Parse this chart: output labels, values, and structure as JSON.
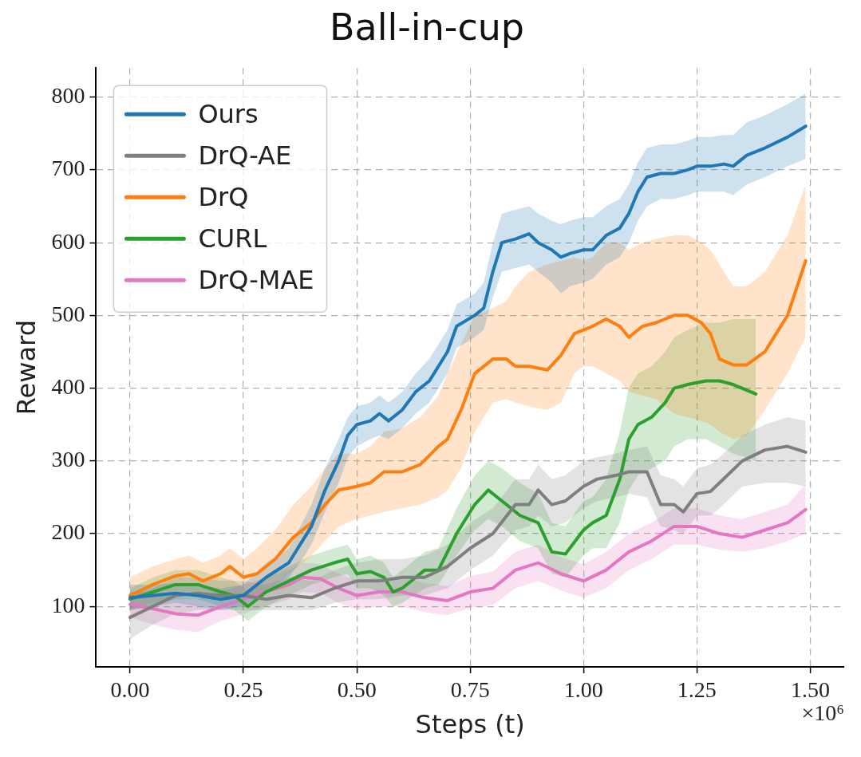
{
  "chart_data": {
    "type": "line",
    "title": "Ball-in-cup",
    "xlabel": "Steps (t)",
    "ylabel": "Reward",
    "annotations": [
      "×10⁶"
    ],
    "xlim": [
      -0.075,
      1.575
    ],
    "ylim": [
      17,
      840
    ],
    "xticks": [
      {
        "value": 0,
        "label": "0.00"
      },
      {
        "value": 0.25,
        "label": "0.25"
      },
      {
        "value": 0.5,
        "label": "0.50"
      },
      {
        "value": 0.75,
        "label": "0.75"
      },
      {
        "value": 1,
        "label": "1.00"
      },
      {
        "value": 1.25,
        "label": "1.25"
      },
      {
        "value": 1.5,
        "label": "1.50"
      }
    ],
    "yticks": [
      100,
      200,
      300,
      400,
      500,
      600,
      700,
      800
    ],
    "grid": true,
    "legend": "top left",
    "line_style": "solid",
    "marker": "none",
    "series": [
      {
        "name": "Ours",
        "color": "#1f77b4",
        "x": [
          0,
          0.05,
          0.1,
          0.15,
          0.2,
          0.25,
          0.3,
          0.35,
          0.38,
          0.4,
          0.43,
          0.46,
          0.48,
          0.5,
          0.53,
          0.55,
          0.57,
          0.6,
          0.63,
          0.66,
          0.7,
          0.72,
          0.76,
          0.78,
          0.8,
          0.82,
          0.85,
          0.88,
          0.9,
          0.93,
          0.95,
          0.97,
          1.0,
          1.02,
          1.05,
          1.08,
          1.1,
          1.12,
          1.14,
          1.17,
          1.2,
          1.23,
          1.25,
          1.28,
          1.31,
          1.33,
          1.36,
          1.4,
          1.45,
          1.49
        ],
        "values": [
          112,
          115,
          118,
          115,
          110,
          115,
          140,
          160,
          190,
          210,
          260,
          300,
          335,
          350,
          355,
          365,
          355,
          370,
          395,
          410,
          450,
          485,
          500,
          510,
          560,
          600,
          605,
          612,
          600,
          590,
          580,
          585,
          590,
          590,
          610,
          620,
          640,
          670,
          690,
          695,
          695,
          700,
          705,
          705,
          708,
          705,
          720,
          730,
          745,
          760
        ],
        "lower": [
          95,
          100,
          105,
          100,
          95,
          100,
          120,
          140,
          165,
          185,
          230,
          270,
          305,
          320,
          330,
          335,
          330,
          345,
          365,
          380,
          420,
          455,
          470,
          480,
          525,
          560,
          565,
          570,
          560,
          545,
          530,
          540,
          545,
          550,
          570,
          580,
          600,
          630,
          650,
          660,
          660,
          665,
          670,
          670,
          670,
          665,
          680,
          690,
          705,
          715
        ],
        "upper": [
          130,
          130,
          132,
          130,
          125,
          130,
          160,
          180,
          215,
          240,
          290,
          330,
          360,
          375,
          380,
          390,
          380,
          395,
          420,
          440,
          480,
          515,
          530,
          545,
          600,
          640,
          645,
          650,
          640,
          630,
          625,
          630,
          635,
          635,
          650,
          660,
          680,
          710,
          730,
          735,
          735,
          740,
          745,
          745,
          748,
          748,
          765,
          775,
          790,
          805
        ]
      },
      {
        "name": "DrQ-AE",
        "color": "#7f7f7f",
        "x": [
          0,
          0.05,
          0.1,
          0.15,
          0.2,
          0.25,
          0.3,
          0.35,
          0.4,
          0.45,
          0.5,
          0.55,
          0.6,
          0.65,
          0.7,
          0.75,
          0.8,
          0.85,
          0.88,
          0.9,
          0.93,
          0.96,
          1.0,
          1.03,
          1.07,
          1.1,
          1.14,
          1.17,
          1.2,
          1.22,
          1.25,
          1.28,
          1.3,
          1.35,
          1.4,
          1.45,
          1.49
        ],
        "values": [
          85,
          100,
          115,
          118,
          115,
          115,
          110,
          115,
          112,
          125,
          135,
          135,
          140,
          140,
          155,
          180,
          200,
          240,
          240,
          260,
          240,
          245,
          265,
          275,
          280,
          285,
          285,
          240,
          240,
          230,
          255,
          258,
          270,
          300,
          315,
          320,
          312
        ],
        "lower": [
          55,
          75,
          90,
          95,
          95,
          95,
          95,
          95,
          95,
          105,
          110,
          110,
          115,
          115,
          125,
          150,
          170,
          205,
          210,
          225,
          210,
          215,
          235,
          245,
          250,
          255,
          250,
          210,
          205,
          200,
          225,
          225,
          235,
          265,
          270,
          270,
          265
        ],
        "upper": [
          115,
          125,
          140,
          140,
          135,
          135,
          130,
          140,
          135,
          150,
          160,
          165,
          165,
          170,
          185,
          215,
          235,
          275,
          275,
          295,
          275,
          280,
          300,
          305,
          310,
          315,
          320,
          280,
          275,
          265,
          290,
          295,
          305,
          335,
          350,
          360,
          355
        ]
      },
      {
        "name": "DrQ",
        "color": "#ff7f0e",
        "x": [
          0,
          0.05,
          0.1,
          0.13,
          0.16,
          0.2,
          0.22,
          0.25,
          0.28,
          0.32,
          0.36,
          0.4,
          0.43,
          0.46,
          0.5,
          0.53,
          0.56,
          0.6,
          0.64,
          0.68,
          0.7,
          0.73,
          0.76,
          0.8,
          0.83,
          0.85,
          0.88,
          0.92,
          0.95,
          0.98,
          1.0,
          1.02,
          1.05,
          1.08,
          1.1,
          1.13,
          1.16,
          1.2,
          1.23,
          1.26,
          1.28,
          1.3,
          1.33,
          1.36,
          1.4,
          1.45,
          1.49
        ],
        "values": [
          115,
          130,
          142,
          145,
          135,
          145,
          155,
          140,
          145,
          165,
          195,
          215,
          240,
          260,
          265,
          270,
          285,
          285,
          295,
          320,
          330,
          370,
          420,
          440,
          440,
          430,
          430,
          425,
          445,
          475,
          480,
          485,
          495,
          485,
          470,
          485,
          490,
          500,
          500,
          490,
          475,
          440,
          432,
          432,
          450,
          500,
          575
        ],
        "lower": [
          95,
          105,
          115,
          115,
          110,
          115,
          120,
          115,
          115,
          130,
          150,
          170,
          190,
          210,
          220,
          225,
          230,
          235,
          240,
          250,
          260,
          290,
          340,
          380,
          385,
          380,
          375,
          370,
          380,
          420,
          430,
          430,
          420,
          410,
          395,
          390,
          385,
          365,
          360,
          355,
          350,
          340,
          330,
          335,
          370,
          420,
          470
        ],
        "upper": [
          140,
          155,
          165,
          170,
          160,
          170,
          180,
          165,
          180,
          205,
          240,
          265,
          290,
          310,
          310,
          320,
          340,
          345,
          360,
          390,
          420,
          460,
          500,
          510,
          520,
          540,
          560,
          570,
          575,
          580,
          575,
          580,
          600,
          600,
          590,
          600,
          605,
          610,
          610,
          600,
          590,
          570,
          540,
          540,
          560,
          610,
          680
        ]
      },
      {
        "name": "CURL",
        "color": "#2ca02c",
        "x": [
          0,
          0.05,
          0.1,
          0.15,
          0.2,
          0.23,
          0.26,
          0.3,
          0.35,
          0.4,
          0.45,
          0.48,
          0.5,
          0.53,
          0.56,
          0.58,
          0.6,
          0.65,
          0.68,
          0.72,
          0.76,
          0.79,
          0.82,
          0.86,
          0.9,
          0.93,
          0.96,
          1.0,
          1.02,
          1.05,
          1.08,
          1.1,
          1.12,
          1.15,
          1.18,
          1.2,
          1.23,
          1.27,
          1.3,
          1.33,
          1.38
        ],
        "values": [
          110,
          120,
          130,
          130,
          120,
          115,
          100,
          120,
          135,
          150,
          160,
          165,
          145,
          148,
          140,
          120,
          125,
          150,
          150,
          200,
          240,
          260,
          245,
          225,
          215,
          175,
          172,
          205,
          215,
          225,
          275,
          330,
          350,
          360,
          380,
          400,
          405,
          410,
          410,
          405,
          392
        ],
        "lower": [
          95,
          100,
          110,
          110,
          100,
          95,
          80,
          100,
          115,
          130,
          140,
          145,
          125,
          125,
          115,
          100,
          105,
          125,
          130,
          170,
          205,
          220,
          210,
          190,
          180,
          145,
          140,
          170,
          180,
          180,
          215,
          260,
          280,
          290,
          300,
          320,
          330,
          330,
          320,
          310,
          300
        ],
        "upper": [
          125,
          140,
          150,
          150,
          140,
          135,
          120,
          140,
          155,
          170,
          180,
          185,
          165,
          170,
          160,
          140,
          150,
          175,
          180,
          235,
          280,
          300,
          290,
          270,
          255,
          215,
          210,
          245,
          250,
          275,
          340,
          400,
          420,
          430,
          450,
          470,
          480,
          490,
          490,
          495,
          495
        ]
      },
      {
        "name": "DrQ-MAE",
        "color": "#e377c2",
        "x": [
          0,
          0.05,
          0.1,
          0.15,
          0.2,
          0.25,
          0.3,
          0.35,
          0.38,
          0.42,
          0.46,
          0.5,
          0.55,
          0.6,
          0.65,
          0.7,
          0.75,
          0.8,
          0.85,
          0.9,
          0.95,
          1.0,
          1.05,
          1.1,
          1.15,
          1.2,
          1.25,
          1.3,
          1.35,
          1.4,
          1.45,
          1.49
        ],
        "values": [
          103,
          97,
          90,
          88,
          100,
          110,
          120,
          130,
          140,
          138,
          125,
          115,
          120,
          120,
          112,
          108,
          120,
          125,
          150,
          160,
          145,
          135,
          150,
          175,
          190,
          210,
          210,
          200,
          195,
          205,
          215,
          233
        ],
        "lower": [
          85,
          75,
          68,
          65,
          80,
          90,
          100,
          110,
          120,
          118,
          105,
          95,
          100,
          100,
          92,
          88,
          98,
          102,
          125,
          135,
          122,
          112,
          125,
          150,
          165,
          185,
          185,
          178,
          175,
          180,
          190,
          200
        ],
        "upper": [
          120,
          120,
          112,
          110,
          120,
          130,
          140,
          150,
          160,
          158,
          145,
          135,
          140,
          140,
          132,
          128,
          142,
          148,
          175,
          185,
          168,
          158,
          175,
          200,
          215,
          235,
          235,
          225,
          220,
          230,
          240,
          268
        ]
      }
    ]
  }
}
